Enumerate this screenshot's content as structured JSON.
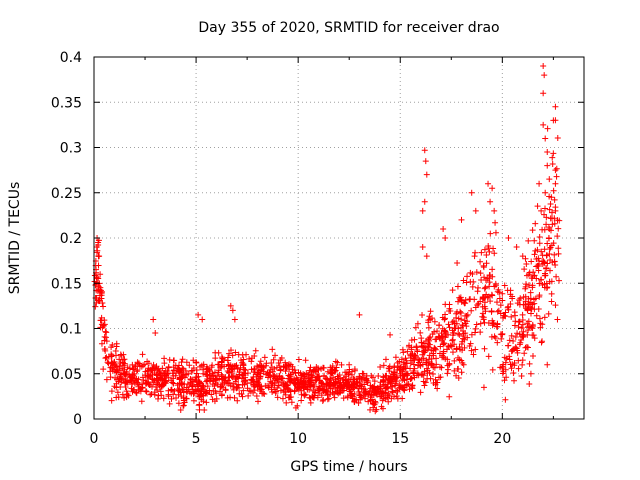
{
  "chart_data": {
    "type": "scatter",
    "title": "Day 355 of 2020, SRMTID for receiver drao",
    "xlabel": "GPS time / hours",
    "ylabel": "SRMTID / TECUs",
    "xlim": [
      0,
      24
    ],
    "ylim": [
      0,
      0.4
    ],
    "xticks": [
      0,
      5,
      10,
      15,
      20
    ],
    "xtick_labels": [
      "0",
      "5",
      "10",
      "15",
      "20"
    ],
    "yticks": [
      0,
      0.05,
      0.1,
      0.15,
      0.2,
      0.25,
      0.3,
      0.35,
      0.4
    ],
    "ytick_labels": [
      "0",
      "0.05",
      "0.1",
      "0.15",
      "0.2",
      "0.25",
      "0.3",
      "0.35",
      "0.4"
    ],
    "grid": true,
    "marker": "plus",
    "color": "#ff0000",
    "series": [
      {
        "name": "SRMTID",
        "trend": {
          "x": [
            0,
            0.1,
            0.2,
            0.3,
            0.5,
            0.8,
            1.0,
            1.5,
            2.0,
            3.0,
            4.0,
            5.0,
            6.0,
            7.0,
            8.0,
            9.0,
            10.0,
            11.0,
            12.0,
            13.0,
            13.5,
            14.0,
            14.5,
            15.0,
            15.5,
            16.0,
            16.5,
            17.0,
            17.5,
            18.0,
            18.5,
            19.0,
            19.5,
            20.0,
            20.5,
            21.0,
            21.5,
            22.0,
            22.5
          ],
          "y": [
            0.13,
            0.16,
            0.17,
            0.15,
            0.09,
            0.065,
            0.055,
            0.048,
            0.045,
            0.045,
            0.042,
            0.04,
            0.045,
            0.05,
            0.045,
            0.045,
            0.04,
            0.04,
            0.04,
            0.035,
            0.03,
            0.032,
            0.04,
            0.05,
            0.06,
            0.07,
            0.07,
            0.08,
            0.09,
            0.11,
            0.12,
            0.13,
            0.14,
            0.1,
            0.09,
            0.11,
            0.13,
            0.17,
            0.22
          ]
        },
        "spread": {
          "x": [
            0,
            1,
            2,
            5,
            8,
            10,
            12,
            14,
            15,
            16,
            17,
            18,
            19,
            20,
            21,
            22,
            22.6
          ],
          "y": [
            0.035,
            0.025,
            0.018,
            0.02,
            0.02,
            0.018,
            0.015,
            0.018,
            0.02,
            0.035,
            0.04,
            0.05,
            0.06,
            0.05,
            0.055,
            0.07,
            0.08
          ]
        },
        "num_points": 2000,
        "highlights": [
          {
            "x": 2.9,
            "y": 0.11
          },
          {
            "x": 13.0,
            "y": 0.115
          },
          {
            "x": 14.5,
            "y": 0.093
          },
          {
            "x": 16.2,
            "y": 0.297
          },
          {
            "x": 16.25,
            "y": 0.285
          },
          {
            "x": 16.3,
            "y": 0.27
          },
          {
            "x": 16.2,
            "y": 0.24
          },
          {
            "x": 16.1,
            "y": 0.19
          },
          {
            "x": 16.3,
            "y": 0.18
          },
          {
            "x": 16.1,
            "y": 0.23
          },
          {
            "x": 17.2,
            "y": 0.2
          },
          {
            "x": 17.1,
            "y": 0.21
          },
          {
            "x": 18.0,
            "y": 0.22
          },
          {
            "x": 18.5,
            "y": 0.25
          },
          {
            "x": 18.7,
            "y": 0.23
          },
          {
            "x": 19.3,
            "y": 0.26
          },
          {
            "x": 19.5,
            "y": 0.255
          },
          {
            "x": 19.4,
            "y": 0.24
          },
          {
            "x": 19.6,
            "y": 0.23
          },
          {
            "x": 19.1,
            "y": 0.035
          },
          {
            "x": 20.3,
            "y": 0.2
          },
          {
            "x": 20.7,
            "y": 0.19
          },
          {
            "x": 21.0,
            "y": 0.18
          },
          {
            "x": 21.3,
            "y": 0.16
          },
          {
            "x": 22.0,
            "y": 0.39
          },
          {
            "x": 22.05,
            "y": 0.38
          },
          {
            "x": 22.0,
            "y": 0.36
          },
          {
            "x": 22.6,
            "y": 0.345
          },
          {
            "x": 22.5,
            "y": 0.33
          },
          {
            "x": 22.0,
            "y": 0.325
          },
          {
            "x": 22.1,
            "y": 0.31
          },
          {
            "x": 22.2,
            "y": 0.295
          },
          {
            "x": 22.2,
            "y": 0.28
          },
          {
            "x": 22.6,
            "y": 0.275
          },
          {
            "x": 22.3,
            "y": 0.265
          },
          {
            "x": 21.8,
            "y": 0.26
          },
          {
            "x": 22.6,
            "y": 0.26
          },
          {
            "x": 22.1,
            "y": 0.25
          },
          {
            "x": 22.4,
            "y": 0.245
          },
          {
            "x": 21.9,
            "y": 0.23
          },
          {
            "x": 22.6,
            "y": 0.23
          },
          {
            "x": 22.3,
            "y": 0.21
          },
          {
            "x": 21.0,
            "y": 0.065
          },
          {
            "x": 21.4,
            "y": 0.05
          },
          {
            "x": 22.2,
            "y": 0.06
          },
          {
            "x": 22.7,
            "y": 0.11
          },
          {
            "x": 3.0,
            "y": 0.095
          },
          {
            "x": 5.1,
            "y": 0.115
          },
          {
            "x": 5.3,
            "y": 0.11
          },
          {
            "x": 6.7,
            "y": 0.125
          },
          {
            "x": 6.8,
            "y": 0.12
          },
          {
            "x": 6.9,
            "y": 0.11
          },
          {
            "x": 0.15,
            "y": 0.2
          },
          {
            "x": 0.2,
            "y": 0.195
          },
          {
            "x": 0.25,
            "y": 0.18
          },
          {
            "x": 0.1,
            "y": 0.165
          },
          {
            "x": 0.3,
            "y": 0.16
          },
          {
            "x": 4.4,
            "y": 0.015
          },
          {
            "x": 5.4,
            "y": 0.01
          }
        ]
      }
    ]
  }
}
